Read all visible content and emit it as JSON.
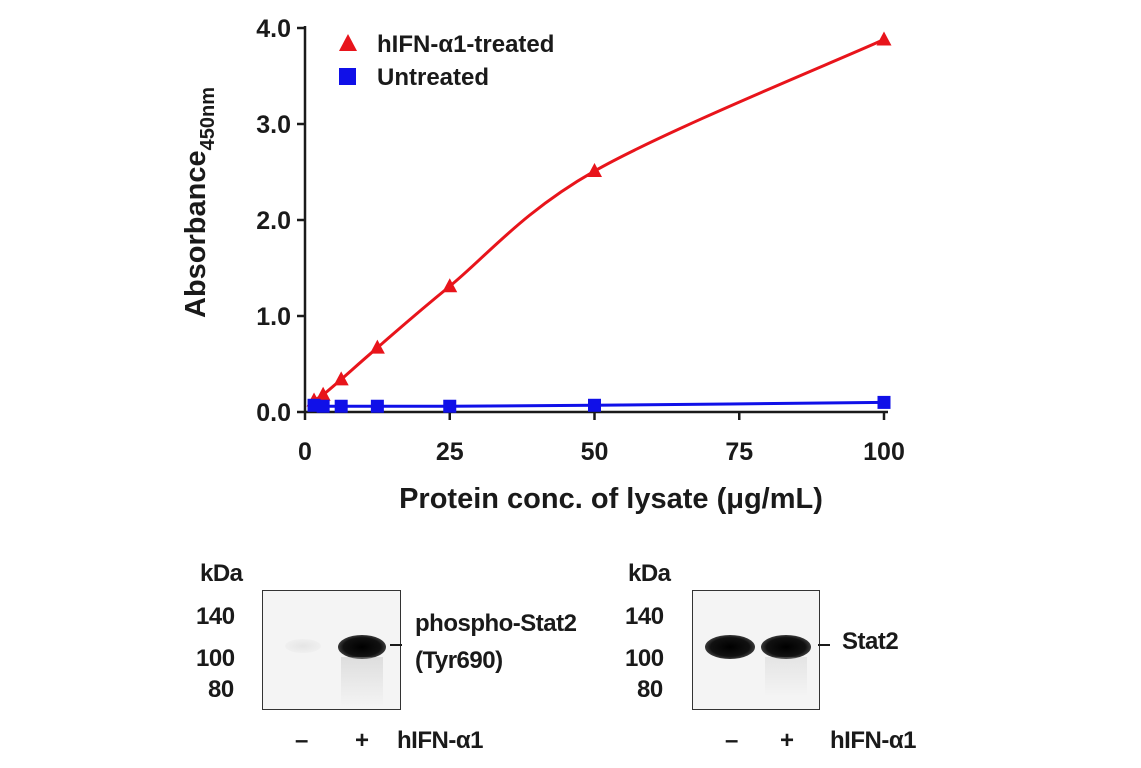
{
  "chart_data": {
    "type": "scatter",
    "xlabel": "Protein conc. of lysate (μg/mL)",
    "ylabel": "Absorbance",
    "ylabel_sub": "450nm",
    "xlim": [
      0,
      100
    ],
    "ylim": [
      0,
      4.0
    ],
    "xticks": [
      "0",
      "25",
      "50",
      "75",
      "100"
    ],
    "yticks": [
      "0.0",
      "1.0",
      "2.0",
      "3.0",
      "4.0"
    ],
    "legend_position": "top-left",
    "series": [
      {
        "name": "hIFN-α1-treated",
        "color": "#e8141b",
        "marker": "triangle",
        "x": [
          1.56,
          3.13,
          6.25,
          12.5,
          25,
          50,
          100
        ],
        "y": [
          0.12,
          0.18,
          0.34,
          0.67,
          1.31,
          2.51,
          3.88
        ]
      },
      {
        "name": "Untreated",
        "color": "#1010e8",
        "marker": "square",
        "x": [
          1.56,
          3.13,
          6.25,
          12.5,
          25,
          50,
          100
        ],
        "y": [
          0.07,
          0.06,
          0.06,
          0.06,
          0.06,
          0.07,
          0.1
        ]
      }
    ]
  },
  "blots": [
    {
      "kda_label": "kDa",
      "markers": [
        "140",
        "100",
        "80"
      ],
      "band_label_line1": "phospho-Stat2",
      "band_label_line2": "(Tyr690)",
      "lane_minus": "–",
      "lane_plus": "+",
      "treatment": "hIFN-α1"
    },
    {
      "kda_label": "kDa",
      "markers": [
        "140",
        "100",
        "80"
      ],
      "band_label_line1": "Stat2",
      "lane_minus": "–",
      "lane_plus": "+",
      "treatment": "hIFN-α1"
    }
  ]
}
